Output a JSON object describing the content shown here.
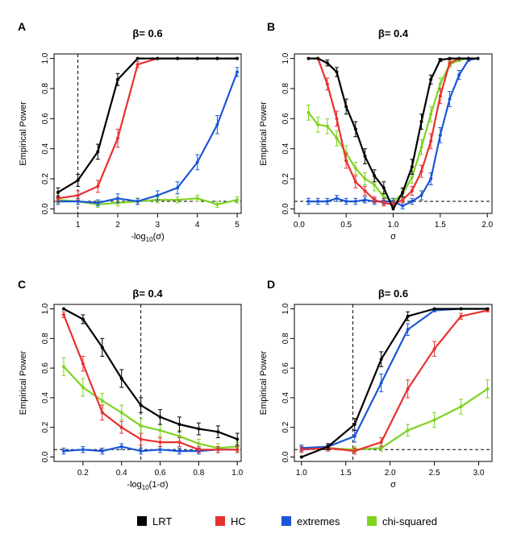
{
  "chart_data": [
    {
      "panel": "A",
      "type": "line",
      "title": "β= 0.6",
      "xlabel": "-log10(σ)",
      "ylabel": "Empirical Power",
      "xlim": [
        0.4,
        5.1
      ],
      "ylim": [
        -0.03,
        1.03
      ],
      "xticks": [
        "1",
        "2",
        "3",
        "4",
        "5"
      ],
      "yticks": [
        "0.0",
        "0.2",
        "0.4",
        "0.6",
        "0.8",
        "1.0"
      ],
      "vline": 1,
      "hline": 0.05,
      "x": [
        0.5,
        1,
        1.5,
        2,
        2.5,
        3,
        3.5,
        4,
        4.5,
        5
      ],
      "series": [
        {
          "name": "LRT",
          "color": "#000000",
          "values": [
            0.11,
            0.19,
            0.38,
            0.86,
            1.0,
            1.0,
            1.0,
            1.0,
            1.0,
            1.0
          ],
          "err": [
            0.03,
            0.04,
            0.05,
            0.04,
            0.0,
            0.0,
            0.0,
            0.0,
            0.0,
            0.0
          ]
        },
        {
          "name": "HC",
          "color": "#E8312F",
          "values": [
            0.07,
            0.09,
            0.15,
            0.47,
            0.96,
            1.0,
            1.0,
            1.0,
            1.0,
            1.0
          ],
          "err": [
            0.02,
            0.03,
            0.04,
            0.06,
            0.02,
            0.0,
            0.0,
            0.0,
            0.0,
            0.0
          ]
        },
        {
          "name": "extremes",
          "color": "#1B56D8",
          "values": [
            0.05,
            0.05,
            0.04,
            0.07,
            0.05,
            0.09,
            0.14,
            0.31,
            0.56,
            0.91
          ],
          "err": [
            0.02,
            0.02,
            0.02,
            0.03,
            0.02,
            0.03,
            0.04,
            0.05,
            0.06,
            0.03
          ]
        },
        {
          "name": "chi-squared",
          "color": "#7ED321",
          "values": [
            0.06,
            0.05,
            0.03,
            0.04,
            0.05,
            0.06,
            0.06,
            0.07,
            0.03,
            0.06
          ],
          "err": [
            0.02,
            0.02,
            0.02,
            0.02,
            0.02,
            0.02,
            0.02,
            0.02,
            0.02,
            0.02
          ]
        }
      ]
    },
    {
      "panel": "B",
      "type": "line",
      "title": "β= 0.4",
      "xlabel": "σ",
      "ylabel": "Empirical Power",
      "xlim": [
        -0.05,
        2.05
      ],
      "ylim": [
        -0.03,
        1.03
      ],
      "xticks": [
        "0.0",
        "0.5",
        "1.0",
        "1.5",
        "2.0"
      ],
      "yticks": [
        "0.0",
        "0.2",
        "0.4",
        "0.6",
        "0.8",
        "1.0"
      ],
      "hline": 0.05,
      "series": [
        {
          "name": "LRT",
          "color": "#000000",
          "x": [
            0.1,
            0.2,
            0.3,
            0.4,
            0.5,
            0.6,
            0.7,
            0.8,
            0.9,
            1.0,
            1.1,
            1.2,
            1.3,
            1.4,
            1.5,
            1.6,
            1.7,
            1.8,
            1.9
          ],
          "values": [
            1.0,
            1.0,
            0.97,
            0.91,
            0.68,
            0.53,
            0.35,
            0.22,
            0.14,
            0.0,
            0.11,
            0.28,
            0.58,
            0.86,
            0.99,
            1.0,
            1.0,
            1.0,
            1.0
          ],
          "err": [
            0.0,
            0.0,
            0.02,
            0.03,
            0.05,
            0.05,
            0.05,
            0.04,
            0.04,
            0.0,
            0.03,
            0.05,
            0.05,
            0.03,
            0.01,
            0.0,
            0.0,
            0.0,
            0.0
          ]
        },
        {
          "name": "HC",
          "color": "#E8312F",
          "x": [
            0.2,
            0.3,
            0.4,
            0.5,
            0.6,
            0.7,
            0.8,
            0.9,
            1.0,
            1.1,
            1.2,
            1.3,
            1.4,
            1.5,
            1.6,
            1.7,
            1.8
          ],
          "values": [
            1.0,
            0.83,
            0.6,
            0.32,
            0.18,
            0.12,
            0.06,
            0.04,
            0.03,
            0.06,
            0.12,
            0.25,
            0.45,
            0.75,
            0.97,
            1.0,
            1.0
          ],
          "err": [
            0.0,
            0.04,
            0.05,
            0.05,
            0.04,
            0.03,
            0.02,
            0.02,
            0.02,
            0.02,
            0.03,
            0.04,
            0.05,
            0.05,
            0.02,
            0.0,
            0.0
          ]
        },
        {
          "name": "extremes",
          "color": "#1B56D8",
          "x": [
            0.1,
            0.2,
            0.3,
            0.4,
            0.5,
            0.6,
            0.7,
            0.8,
            0.9,
            1.0,
            1.1,
            1.2,
            1.3,
            1.4,
            1.5,
            1.6,
            1.7,
            1.8,
            1.9
          ],
          "values": [
            0.05,
            0.05,
            0.05,
            0.07,
            0.05,
            0.05,
            0.06,
            0.05,
            0.05,
            0.05,
            0.02,
            0.05,
            0.09,
            0.2,
            0.49,
            0.73,
            0.89,
            0.99,
            1.0
          ],
          "err": [
            0.02,
            0.02,
            0.02,
            0.02,
            0.02,
            0.02,
            0.02,
            0.02,
            0.02,
            0.02,
            0.02,
            0.02,
            0.03,
            0.04,
            0.05,
            0.05,
            0.03,
            0.01,
            0.0
          ]
        },
        {
          "name": "chi-squared",
          "color": "#7ED321",
          "x": [
            0.1,
            0.2,
            0.3,
            0.4,
            0.5,
            0.6,
            0.7,
            0.8,
            0.9,
            1.0,
            1.1,
            1.2,
            1.3,
            1.4,
            1.5,
            1.6,
            1.7,
            1.8,
            1.9
          ],
          "values": [
            0.64,
            0.56,
            0.55,
            0.47,
            0.37,
            0.27,
            0.2,
            0.16,
            0.08,
            0.05,
            0.1,
            0.21,
            0.41,
            0.63,
            0.83,
            0.96,
            0.99,
            1.0,
            1.0
          ],
          "err": [
            0.05,
            0.05,
            0.05,
            0.05,
            0.05,
            0.04,
            0.04,
            0.04,
            0.03,
            0.02,
            0.03,
            0.04,
            0.05,
            0.05,
            0.04,
            0.02,
            0.01,
            0.0,
            0.0
          ]
        }
      ]
    },
    {
      "panel": "C",
      "type": "line",
      "title": "β= 0.4",
      "xlabel": "-log10(1-σ)",
      "ylabel": "Empirical Power",
      "xlim": [
        0.05,
        1.02
      ],
      "ylim": [
        -0.03,
        1.03
      ],
      "xticks": [
        "0.2",
        "0.4",
        "0.6",
        "0.8",
        "1.0"
      ],
      "yticks": [
        "0.0",
        "0.2",
        "0.4",
        "0.6",
        "0.8",
        "1.0"
      ],
      "vline": 0.5,
      "hline": 0.05,
      "x": [
        0.1,
        0.2,
        0.3,
        0.4,
        0.5,
        0.6,
        0.7,
        0.8,
        0.9,
        1.0
      ],
      "series": [
        {
          "name": "LRT",
          "color": "#000000",
          "values": [
            1.0,
            0.93,
            0.74,
            0.53,
            0.35,
            0.27,
            0.22,
            0.19,
            0.17,
            0.12
          ],
          "err": [
            0.0,
            0.03,
            0.06,
            0.06,
            0.05,
            0.05,
            0.05,
            0.04,
            0.04,
            0.04
          ]
        },
        {
          "name": "HC",
          "color": "#E8312F",
          "values": [
            0.96,
            0.63,
            0.3,
            0.2,
            0.12,
            0.1,
            0.1,
            0.05,
            0.05,
            0.05
          ],
          "err": [
            0.02,
            0.05,
            0.05,
            0.04,
            0.04,
            0.03,
            0.03,
            0.02,
            0.02,
            0.02
          ]
        },
        {
          "name": "extremes",
          "color": "#1B56D8",
          "values": [
            0.04,
            0.05,
            0.04,
            0.07,
            0.04,
            0.05,
            0.04,
            0.04,
            0.05,
            0.05
          ],
          "err": [
            0.02,
            0.02,
            0.02,
            0.02,
            0.02,
            0.02,
            0.02,
            0.02,
            0.02,
            0.02
          ]
        },
        {
          "name": "chi-squared",
          "color": "#7ED321",
          "values": [
            0.61,
            0.47,
            0.38,
            0.3,
            0.21,
            0.18,
            0.14,
            0.09,
            0.06,
            0.07
          ],
          "err": [
            0.06,
            0.06,
            0.05,
            0.05,
            0.05,
            0.04,
            0.04,
            0.03,
            0.03,
            0.03
          ]
        }
      ]
    },
    {
      "panel": "D",
      "type": "line",
      "title": "β= 0.6",
      "xlabel": "σ",
      "ylabel": "Empirical Power",
      "xlim": [
        0.92,
        3.15
      ],
      "ylim": [
        -0.03,
        1.03
      ],
      "xticks": [
        "1.0",
        "1.5",
        "2.0",
        "2.5",
        "3.0"
      ],
      "yticks": [
        "0.0",
        "0.2",
        "0.4",
        "0.6",
        "0.8",
        "1.0"
      ],
      "vline": 1.58,
      "hline": 0.05,
      "x": [
        1.0,
        1.3,
        1.6,
        1.9,
        2.2,
        2.5,
        2.8,
        3.1
      ],
      "series": [
        {
          "name": "LRT",
          "color": "#000000",
          "values": [
            0.0,
            0.07,
            0.22,
            0.66,
            0.95,
            1.0,
            1.0,
            1.0
          ],
          "err": [
            0.0,
            0.02,
            0.04,
            0.05,
            0.03,
            0.0,
            0.0,
            0.0
          ]
        },
        {
          "name": "HC",
          "color": "#E8312F",
          "values": [
            0.05,
            0.06,
            0.04,
            0.1,
            0.46,
            0.73,
            0.95,
            0.99
          ],
          "err": [
            0.02,
            0.02,
            0.02,
            0.03,
            0.06,
            0.05,
            0.02,
            0.01
          ]
        },
        {
          "name": "extremes",
          "color": "#1B56D8",
          "values": [
            0.06,
            0.07,
            0.14,
            0.5,
            0.86,
            0.99,
            1.0,
            1.0
          ],
          "err": [
            0.02,
            0.02,
            0.04,
            0.06,
            0.04,
            0.01,
            0.0,
            0.0
          ]
        },
        {
          "name": "chi-squared",
          "color": "#7ED321",
          "values": [
            0.06,
            0.06,
            0.05,
            0.06,
            0.18,
            0.25,
            0.34,
            0.46
          ],
          "err": [
            0.02,
            0.02,
            0.02,
            0.02,
            0.04,
            0.05,
            0.05,
            0.06
          ]
        }
      ]
    }
  ],
  "legend": [
    {
      "label": "LRT",
      "color": "#000000"
    },
    {
      "label": "HC",
      "color": "#E8312F"
    },
    {
      "label": "extremes",
      "color": "#1B56D8"
    },
    {
      "label": "chi-squared",
      "color": "#7ED321"
    }
  ]
}
